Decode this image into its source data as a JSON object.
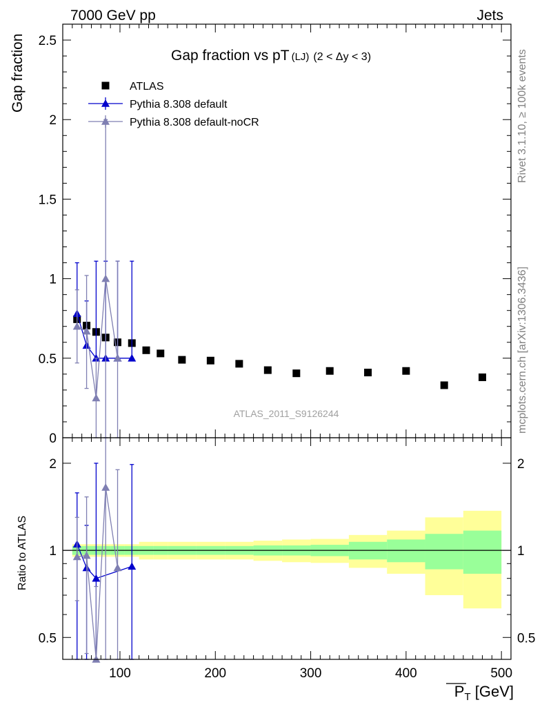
{
  "header": {
    "left": "7000 GeV pp",
    "right": "Jets"
  },
  "side_labels": {
    "rivet": "Rivet 3.1.10, ≥ 100k events",
    "mcplots": "mcplots.cern.ch [arXiv:1306.3436]"
  },
  "chart_data": [
    {
      "type": "scatter",
      "panel": "main",
      "title": "Gap fraction vs pT",
      "title_suffix": "(LJ)",
      "title_range": "(2 < Δy < 3)",
      "ylabel": "Gap fraction",
      "watermark": "ATLAS_2011_S9126244",
      "xlim": [
        40,
        510
      ],
      "ylim": [
        0,
        2.6
      ],
      "x_ticks": [
        100,
        200,
        300,
        400,
        500
      ],
      "y_ticks": [
        0,
        0.5,
        1,
        1.5,
        2,
        2.5
      ],
      "y_tick_labels": [
        "0",
        "0.5",
        "1",
        "1.5",
        "2",
        "2.5"
      ],
      "legend_position": "top-left",
      "series": [
        {
          "name": "ATLAS",
          "color": "#000000",
          "marker": "square",
          "x": [
            55,
            65,
            75,
            85,
            97.5,
            112.5,
            127.5,
            142.5,
            165,
            195,
            225,
            255,
            285,
            320,
            360,
            400,
            440,
            480
          ],
          "y": [
            0.745,
            0.705,
            0.665,
            0.63,
            0.6,
            0.595,
            0.55,
            0.53,
            0.49,
            0.485,
            0.465,
            0.425,
            0.405,
            0.42,
            0.41,
            0.42,
            0.33,
            0.38
          ]
        },
        {
          "name": "Pythia 8.308 default",
          "color": "#0000cc",
          "marker": "triangle",
          "x": [
            55,
            65,
            75,
            85,
            97.5,
            112.5
          ],
          "y": [
            0.78,
            0.58,
            0.5,
            0.5,
            0.5,
            0.5
          ],
          "err_low": [
            0.78,
            0.58,
            0.5,
            0.5,
            0.5,
            0.5
          ],
          "err_high": [
            1.1,
            0.86,
            1.11,
            1.11,
            1.11,
            1.11
          ]
        },
        {
          "name": "Pythia 8.308 default-noCR",
          "color": "#7f7fb2",
          "marker": "triangle",
          "x": [
            55,
            65,
            75,
            85,
            97.5
          ],
          "y": [
            0.7,
            0.67,
            0.25,
            1.0,
            0.5
          ],
          "err_low": [
            0.47,
            0.31,
            0.0,
            0.0,
            0.0
          ],
          "err_high": [
            0.93,
            1.02,
            0.5,
            2.0,
            1.11
          ]
        }
      ]
    },
    {
      "type": "line",
      "panel": "ratio",
      "ylabel": "Ratio to ATLAS",
      "xlabel": "P_T [GeV]",
      "xlabel_symbol": "P",
      "xlabel_sub": "T",
      "xlabel_unit": " [GeV]",
      "log_y": true,
      "xlim": [
        40,
        510
      ],
      "ylim": [
        0.42,
        2.45
      ],
      "x_ticks": [
        100,
        200,
        300,
        400,
        500
      ],
      "x_tick_labels": [
        "100",
        "200",
        "300",
        "400",
        "500"
      ],
      "y_ticks": [
        0.5,
        1,
        2
      ],
      "y_tick_labels": [
        "0.5",
        "1",
        "2"
      ],
      "bands": {
        "edges": [
          50,
          60,
          70,
          80,
          90,
          105,
          120,
          135,
          150,
          180,
          210,
          240,
          270,
          300,
          340,
          380,
          420,
          460,
          500
        ],
        "stat_half": [
          0.035,
          0.035,
          0.035,
          0.035,
          0.035,
          0.035,
          0.035,
          0.035,
          0.035,
          0.035,
          0.035,
          0.04,
          0.04,
          0.045,
          0.07,
          0.09,
          0.14,
          0.17
        ],
        "total_half": [
          0.05,
          0.05,
          0.05,
          0.05,
          0.05,
          0.05,
          0.07,
          0.07,
          0.07,
          0.07,
          0.07,
          0.08,
          0.09,
          0.095,
          0.13,
          0.17,
          0.3,
          0.37
        ],
        "stat_color": "#99ff99",
        "total_color": "#ffff99"
      },
      "series": [
        {
          "name": "Pythia 8.308 default",
          "color": "#0000cc",
          "marker": "triangle",
          "x": [
            55,
            65,
            75,
            112.5
          ],
          "y": [
            1.05,
            0.87,
            0.8,
            0.88
          ],
          "err_low": [
            0.42,
            0.42,
            0.42,
            0.42
          ],
          "err_high": [
            1.58,
            1.22,
            2.0,
            1.98
          ]
        },
        {
          "name": "Pythia 8.308 default-noCR",
          "color": "#7f7fb2",
          "marker": "triangle",
          "x": [
            55,
            65,
            75,
            85,
            97.5
          ],
          "y": [
            0.95,
            0.96,
            0.375,
            1.65,
            0.87
          ],
          "err_low": [
            0.67,
            0.44,
            0.42,
            0.42,
            0.42
          ],
          "err_high": [
            1.3,
            1.53,
            0.75,
            2.45,
            1.9
          ]
        }
      ]
    }
  ]
}
